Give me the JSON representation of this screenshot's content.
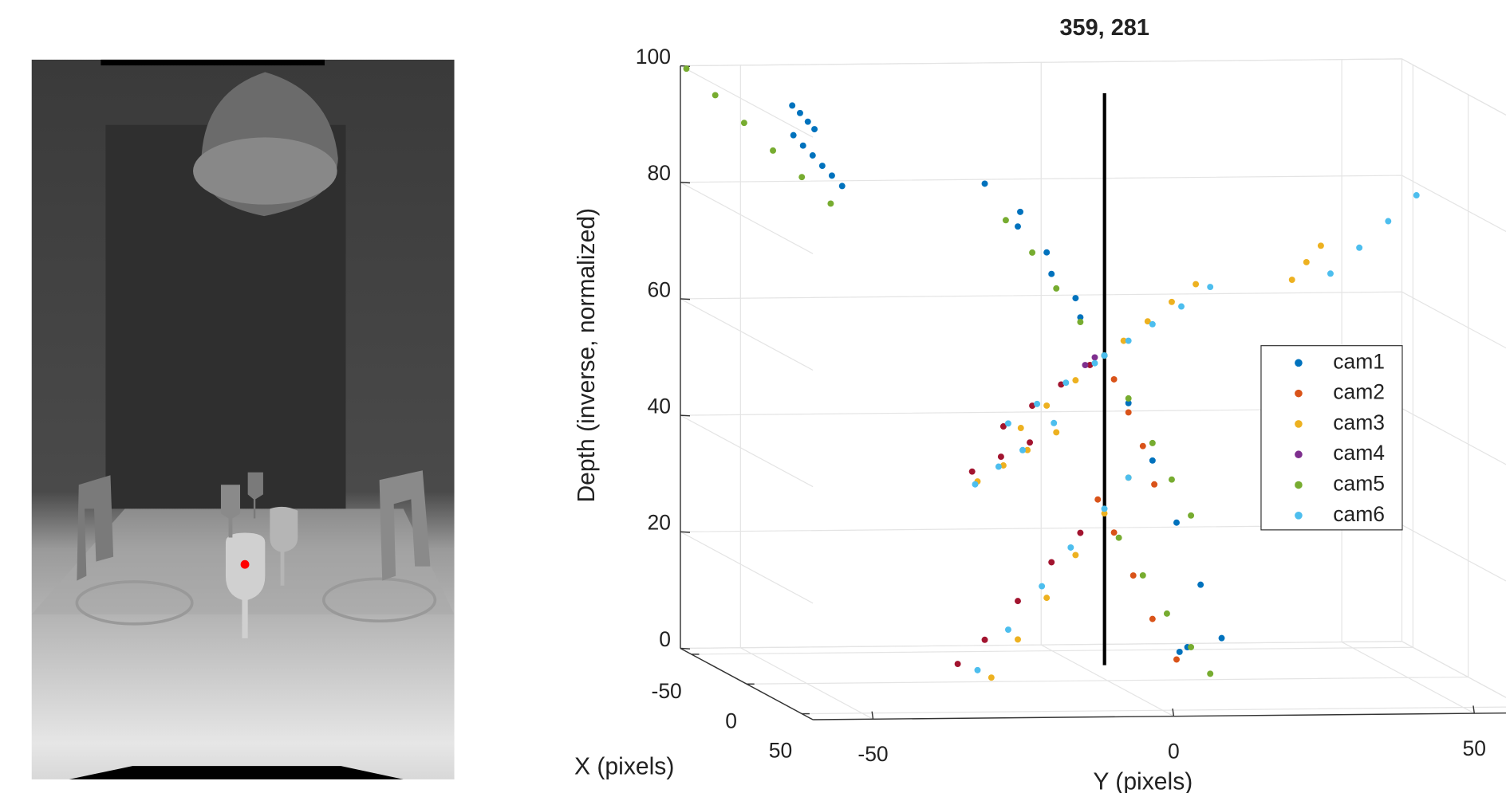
{
  "chart_data": {
    "type": "scatter3d",
    "title": "359, 281",
    "xlabel": "X (pixels)",
    "ylabel": "Y (pixels)",
    "zlabel": "Depth (inverse, normalized)",
    "xlim": [
      -60,
      60
    ],
    "ylim": [
      -60,
      60
    ],
    "zlim": [
      0,
      100
    ],
    "xticks": [
      -50,
      0,
      50
    ],
    "yticks": [
      -50,
      0,
      50
    ],
    "zticks": [
      0,
      20,
      40,
      60,
      80,
      100
    ],
    "grid": true,
    "legend": "right",
    "series": [
      {
        "name": "cam1",
        "color": "#0072bd",
        "x": [
          -60,
          -60,
          -60,
          -60,
          -60,
          -60,
          -60,
          -60,
          -60,
          -60,
          0,
          0,
          0,
          0,
          0,
          0,
          0,
          0,
          0,
          0,
          0,
          0,
          0,
          0,
          0,
          0
        ],
        "y": [
          -41.4,
          -40.1,
          -38.8,
          -37.7,
          -41.2,
          -39.6,
          -38.0,
          -36.4,
          -34.8,
          -33.1,
          -20.4,
          -14.9,
          -9.3,
          -4.5,
          -0.5,
          3.5,
          7.5,
          11.5,
          15.5,
          19.0,
          -14.5,
          -10.1,
          -5.3,
          -0.5,
          12.0,
          13.3
        ],
        "z": [
          93.0,
          91.7,
          90.2,
          88.9,
          87.9,
          86.1,
          84.4,
          82.6,
          80.9,
          79.1,
          85.5,
          78.1,
          69.9,
          62.4,
          55.8,
          47.6,
          37.7,
          27.0,
          16.3,
          7.1,
          80.6,
          73.6,
          65.7,
          55.8,
          4.8,
          5.6
        ]
      },
      {
        "name": "cam2",
        "color": "#d95319",
        "x": [
          0,
          0,
          0,
          0,
          0,
          0,
          0,
          0,
          0
        ],
        "y": [
          1.1,
          3.5,
          5.9,
          7.8,
          -1.6,
          1.1,
          4.3,
          7.5,
          11.5
        ],
        "z": [
          51.7,
          46.0,
          40.2,
          33.6,
          31.1,
          25.4,
          18.0,
          10.5,
          3.5
        ]
      },
      {
        "name": "cam3",
        "color": "#edb120",
        "x": [
          0,
          0,
          0,
          0,
          0,
          0,
          0,
          0,
          0,
          0,
          0,
          0,
          0,
          0,
          0,
          0,
          0,
          0,
          0,
          0
        ],
        "y": [
          2.7,
          6.7,
          10.7,
          14.7,
          -14.4,
          -10.1,
          -5.3,
          -21.6,
          -17.3,
          -13.3,
          -8.5,
          -19.3,
          -14.9,
          -10.1,
          -5.3,
          -0.5,
          3.5,
          30.7,
          33.1,
          35.5
        ],
        "z": [
          58.3,
          61.6,
          64.9,
          67.9,
          43.5,
          47.3,
          51.6,
          34.4,
          37.1,
          39.7,
          42.7,
          0.7,
          7.2,
          14.3,
          21.6,
          28.7,
          34.8,
          68.5,
          71.5,
          74.3
        ]
      },
      {
        "name": "cam4",
        "color": "#7e2f8e",
        "x": [
          0,
          0
        ],
        "y": [
          -3.7,
          -2.1
        ],
        "z": [
          54.2,
          55.5
        ]
      },
      {
        "name": "cam5",
        "color": "#77ac30",
        "x": [
          -60,
          -60,
          -60,
          -60,
          -60,
          -60,
          0,
          0,
          0,
          0,
          0,
          0,
          0,
          0,
          0,
          0,
          0,
          0,
          0,
          0
        ],
        "y": [
          -59.0,
          -54.2,
          -49.4,
          -44.6,
          -39.8,
          -35.0,
          -16.9,
          -12.5,
          -8.5,
          -4.5,
          -0.5,
          3.5,
          7.5,
          10.7,
          13.9,
          1.9,
          5.9,
          9.9,
          13.9,
          17.1
        ],
        "z": [
          99.5,
          94.9,
          90.1,
          85.3,
          80.7,
          76.1,
          79.2,
          73.6,
          67.4,
          61.6,
          55.8,
          48.4,
          40.7,
          34.4,
          28.2,
          24.5,
          18.0,
          11.4,
          5.6,
          1.0
        ]
      },
      {
        "name": "cam6",
        "color": "#4dbeee",
        "x": [
          0,
          0,
          0,
          0,
          0,
          0,
          0,
          0,
          0,
          0,
          0,
          0,
          0,
          0,
          0,
          0,
          0,
          0,
          0,
          0,
          0,
          0,
          0
        ],
        "y": [
          -0.5,
          3.5,
          7.5,
          12.3,
          17.1,
          -16.5,
          -11.7,
          -6.9,
          -2.1,
          -22.0,
          -18.1,
          -14.1,
          -8.9,
          -21.6,
          -16.5,
          -10.9,
          -6.1,
          -0.5,
          3.5,
          37.1,
          41.9,
          46.7,
          51.4
        ],
        "z": [
          55.8,
          58.3,
          61.1,
          64.1,
          67.4,
          44.3,
          47.6,
          51.2,
          54.5,
          33.9,
          36.9,
          39.7,
          44.3,
          2.0,
          8.9,
          16.3,
          22.9,
          29.5,
          34.8,
          69.5,
          73.9,
          78.4,
          82.8
        ]
      },
      {
        "color": "#a2142f",
        "x": [
          0,
          0,
          0,
          0,
          0,
          0,
          0,
          0,
          0,
          0,
          0,
          0
        ],
        "y": [
          -17.3,
          -12.5,
          -7.7,
          -2.9,
          -22.5,
          -17.7,
          -12.9,
          -24.9,
          -20.4,
          -14.9,
          -9.3,
          -4.5
        ],
        "z": [
          43.8,
          47.3,
          50.9,
          54.2,
          36.1,
          38.6,
          41.0,
          3.1,
          7.2,
          13.8,
          20.4,
          25.4
        ]
      }
    ]
  }
}
